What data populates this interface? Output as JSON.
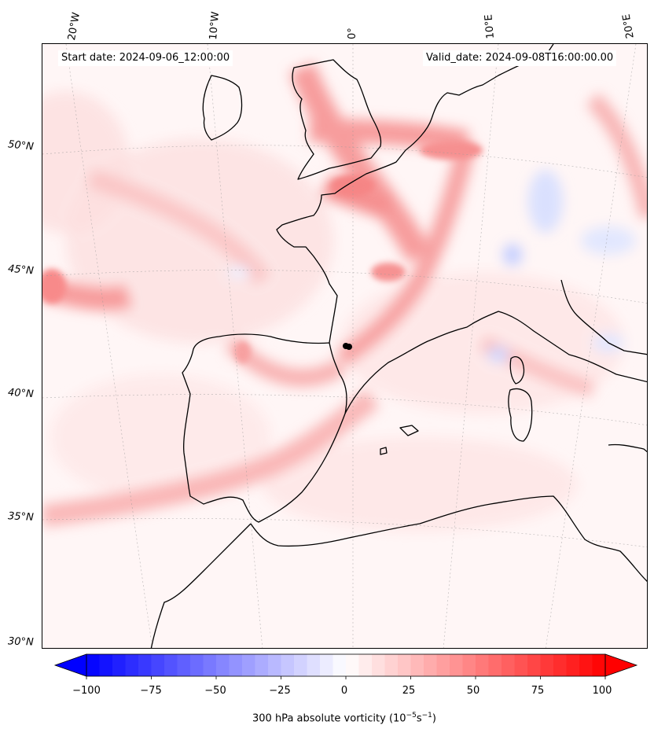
{
  "header": {
    "start_date": "Start date: 2024-09-06_12:00:00",
    "valid_date": "Valid_date: 2024-09-08T16:00:00.00"
  },
  "grid": {
    "lon_labels": [
      "20°W",
      "10°W",
      "0°",
      "10°E",
      "20°E"
    ],
    "lat_labels": [
      "50°N",
      "45°N",
      "40°N",
      "35°N",
      "30°N"
    ]
  },
  "colorbar": {
    "ticks": [
      "−100",
      "−75",
      "−50",
      "−25",
      "0",
      "25",
      "50",
      "75",
      "100"
    ],
    "label_main": "300 hPa absolute vorticity (10",
    "label_exp1": "−5",
    "label_mid": "s",
    "label_exp2": "−1",
    "label_end": ")",
    "range": [
      -100,
      100
    ],
    "negative_color": "#0000ff",
    "positive_color": "#ff0000",
    "extend": "both"
  },
  "colors": {
    "coastline": "#000000",
    "marker": "#000000"
  }
}
